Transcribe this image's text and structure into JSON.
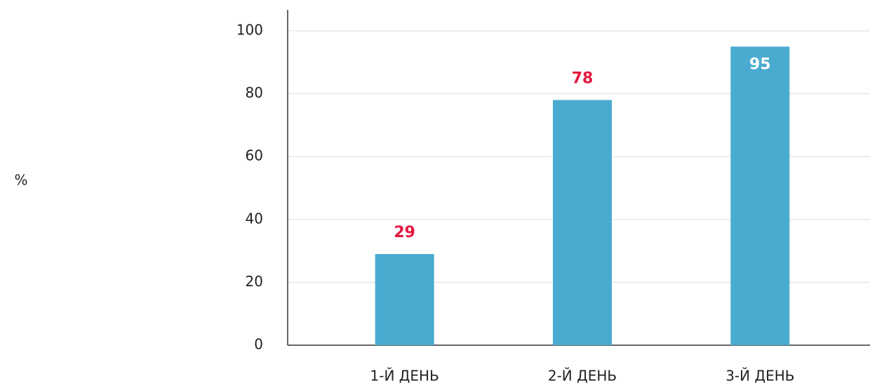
{
  "chart_data": {
    "type": "bar",
    "y_label": "%",
    "categories": [
      "1-Й ДЕНЬ",
      "2-Й ДЕНЬ",
      "3-Й ДЕНЬ"
    ],
    "values": [
      29,
      78,
      95
    ],
    "color": "#4aabd0",
    "label_color": "#e3173f",
    "ylim": [
      0,
      100
    ],
    "yticks": [
      0,
      20,
      40,
      60,
      80,
      100
    ],
    "grid": true
  }
}
